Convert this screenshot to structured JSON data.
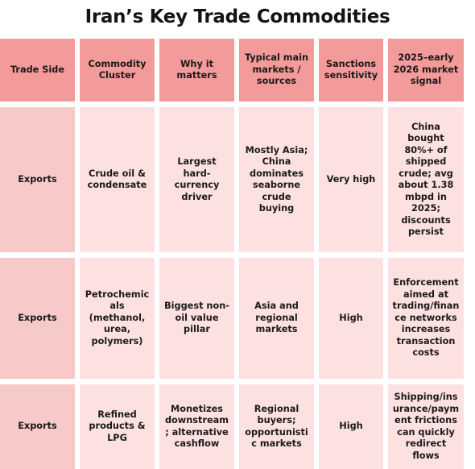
{
  "title": "Iran’s Key Trade Commodities",
  "table": {
    "headers": [
      "Trade Side",
      "Commodity Cluster",
      "Why it matters",
      "Typical main markets / sources",
      "Sanctions sensitivity",
      "2025–early 2026 market signal"
    ],
    "rows": [
      {
        "trade_side": "Exports",
        "commodity_cluster": "Crude oil & condensate",
        "why_it_matters": "Largest hard-currency driver",
        "markets": "Mostly Asia; China dominates seaborne crude buying",
        "sanctions": "Very high",
        "signal": "China bought 80%+ of shipped crude; avg about 1.38 mbpd in 2025; discounts persist"
      },
      {
        "trade_side": "Exports",
        "commodity_cluster": "Petrochemicals (methanol, urea, polymers)",
        "why_it_matters": "Biggest non-oil value pillar",
        "markets": "Asia and regional markets",
        "sanctions": "High",
        "signal": "Enforcement aimed at trading/finance networks increases transaction costs"
      },
      {
        "trade_side": "Exports",
        "commodity_cluster": "Refined products & LPG",
        "why_it_matters": "Monetizes downstream; alternative cashflow",
        "markets": "Regional buyers; opportunistic markets",
        "sanctions": "High",
        "signal": "Shipping/insurance/payment frictions can quickly redirect flows"
      }
    ]
  },
  "colors": {
    "header_bg": "#f39a9a",
    "side_bg": "#f7c9c9",
    "body_bg": "#fde1e1"
  }
}
